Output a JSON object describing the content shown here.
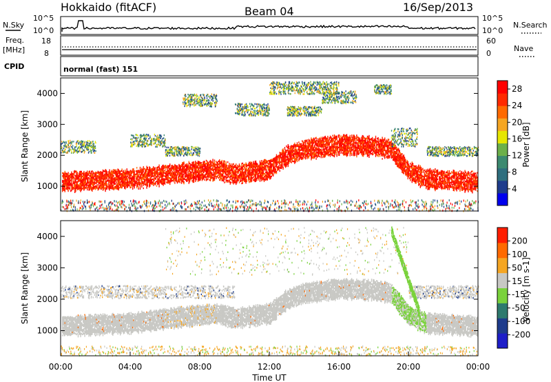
{
  "header": {
    "station": "Hokkaido (fitACF)",
    "beam": "Beam 04",
    "date": "16/Sep/2013"
  },
  "top_panels": {
    "nsky_label": "N.Sky",
    "nsky_hi": "10^5",
    "nsky_lo": "10^0",
    "nsearch_label": "N.Search",
    "nsearch_hi": "10^5",
    "nsearch_lo": "10^0",
    "freq_label": "Freq.",
    "freq_unit": "[MHz]",
    "freq_hi": "18",
    "freq_lo": "8",
    "nave_label": "Nave",
    "nave_hi": "60",
    "nave_lo": "0",
    "cpid_label": "CPID",
    "cpid_text": "normal (fast) 151"
  },
  "chart_data": [
    {
      "type": "heatmap",
      "name": "power",
      "ylabel": "Slant Range [km]",
      "y_ticks": [
        "4000",
        "3000",
        "2000",
        "1000"
      ],
      "y_tick_values": [
        4000,
        3000,
        2000,
        1000
      ],
      "ylim": [
        200,
        4500
      ],
      "colorbar": {
        "label": "Power [dB]",
        "ticks": [
          "28",
          "24",
          "20",
          "16",
          "12",
          "8",
          "4"
        ],
        "tick_values": [
          28,
          24,
          20,
          16,
          12,
          8,
          4
        ],
        "range": [
          0,
          30
        ],
        "colors": [
          "#0000ee",
          "#1e3c8c",
          "#2e6e7e",
          "#3c8a70",
          "#6cb04a",
          "#e6e600",
          "#f5a623",
          "#ff6a00",
          "#ff2a00",
          "#ff0000"
        ]
      },
      "main_band_center_km": [
        [
          0,
          1150
        ],
        [
          4,
          1250
        ],
        [
          7,
          1450
        ],
        [
          9,
          1550
        ],
        [
          10,
          1400
        ],
        [
          12,
          1550
        ],
        [
          13,
          2000
        ],
        [
          14,
          2200
        ],
        [
          16,
          2350
        ],
        [
          18,
          2300
        ],
        [
          19,
          2200
        ],
        [
          20,
          1500
        ],
        [
          21,
          1250
        ],
        [
          24,
          1150
        ]
      ]
    },
    {
      "type": "heatmap",
      "name": "velocity",
      "ylabel": "Slant Range [km]",
      "y_ticks": [
        "4000",
        "3000",
        "2000",
        "1000"
      ],
      "y_tick_values": [
        4000,
        3000,
        2000,
        1000
      ],
      "ylim": [
        200,
        4500
      ],
      "colorbar": {
        "label": "Velocity [m s-1]",
        "ticks": [
          "200",
          "100",
          "50",
          "15",
          "-15",
          "-50",
          "-100",
          "-200"
        ],
        "tick_values": [
          200,
          100,
          50,
          15,
          -15,
          -50,
          -100,
          -200
        ],
        "colors": [
          "#1e1ec8",
          "#1e3c8c",
          "#2e7a6e",
          "#7ad23c",
          "#c8c8c4",
          "#f5a623",
          "#ff6a00",
          "#ff1e00"
        ]
      }
    }
  ],
  "x_axis": {
    "label": "Time UT",
    "ticks": [
      "00:00",
      "04:00",
      "08:00",
      "12:00",
      "16:00",
      "20:00",
      "00:00"
    ],
    "tick_hours": [
      0,
      4,
      8,
      12,
      16,
      20,
      24
    ]
  }
}
